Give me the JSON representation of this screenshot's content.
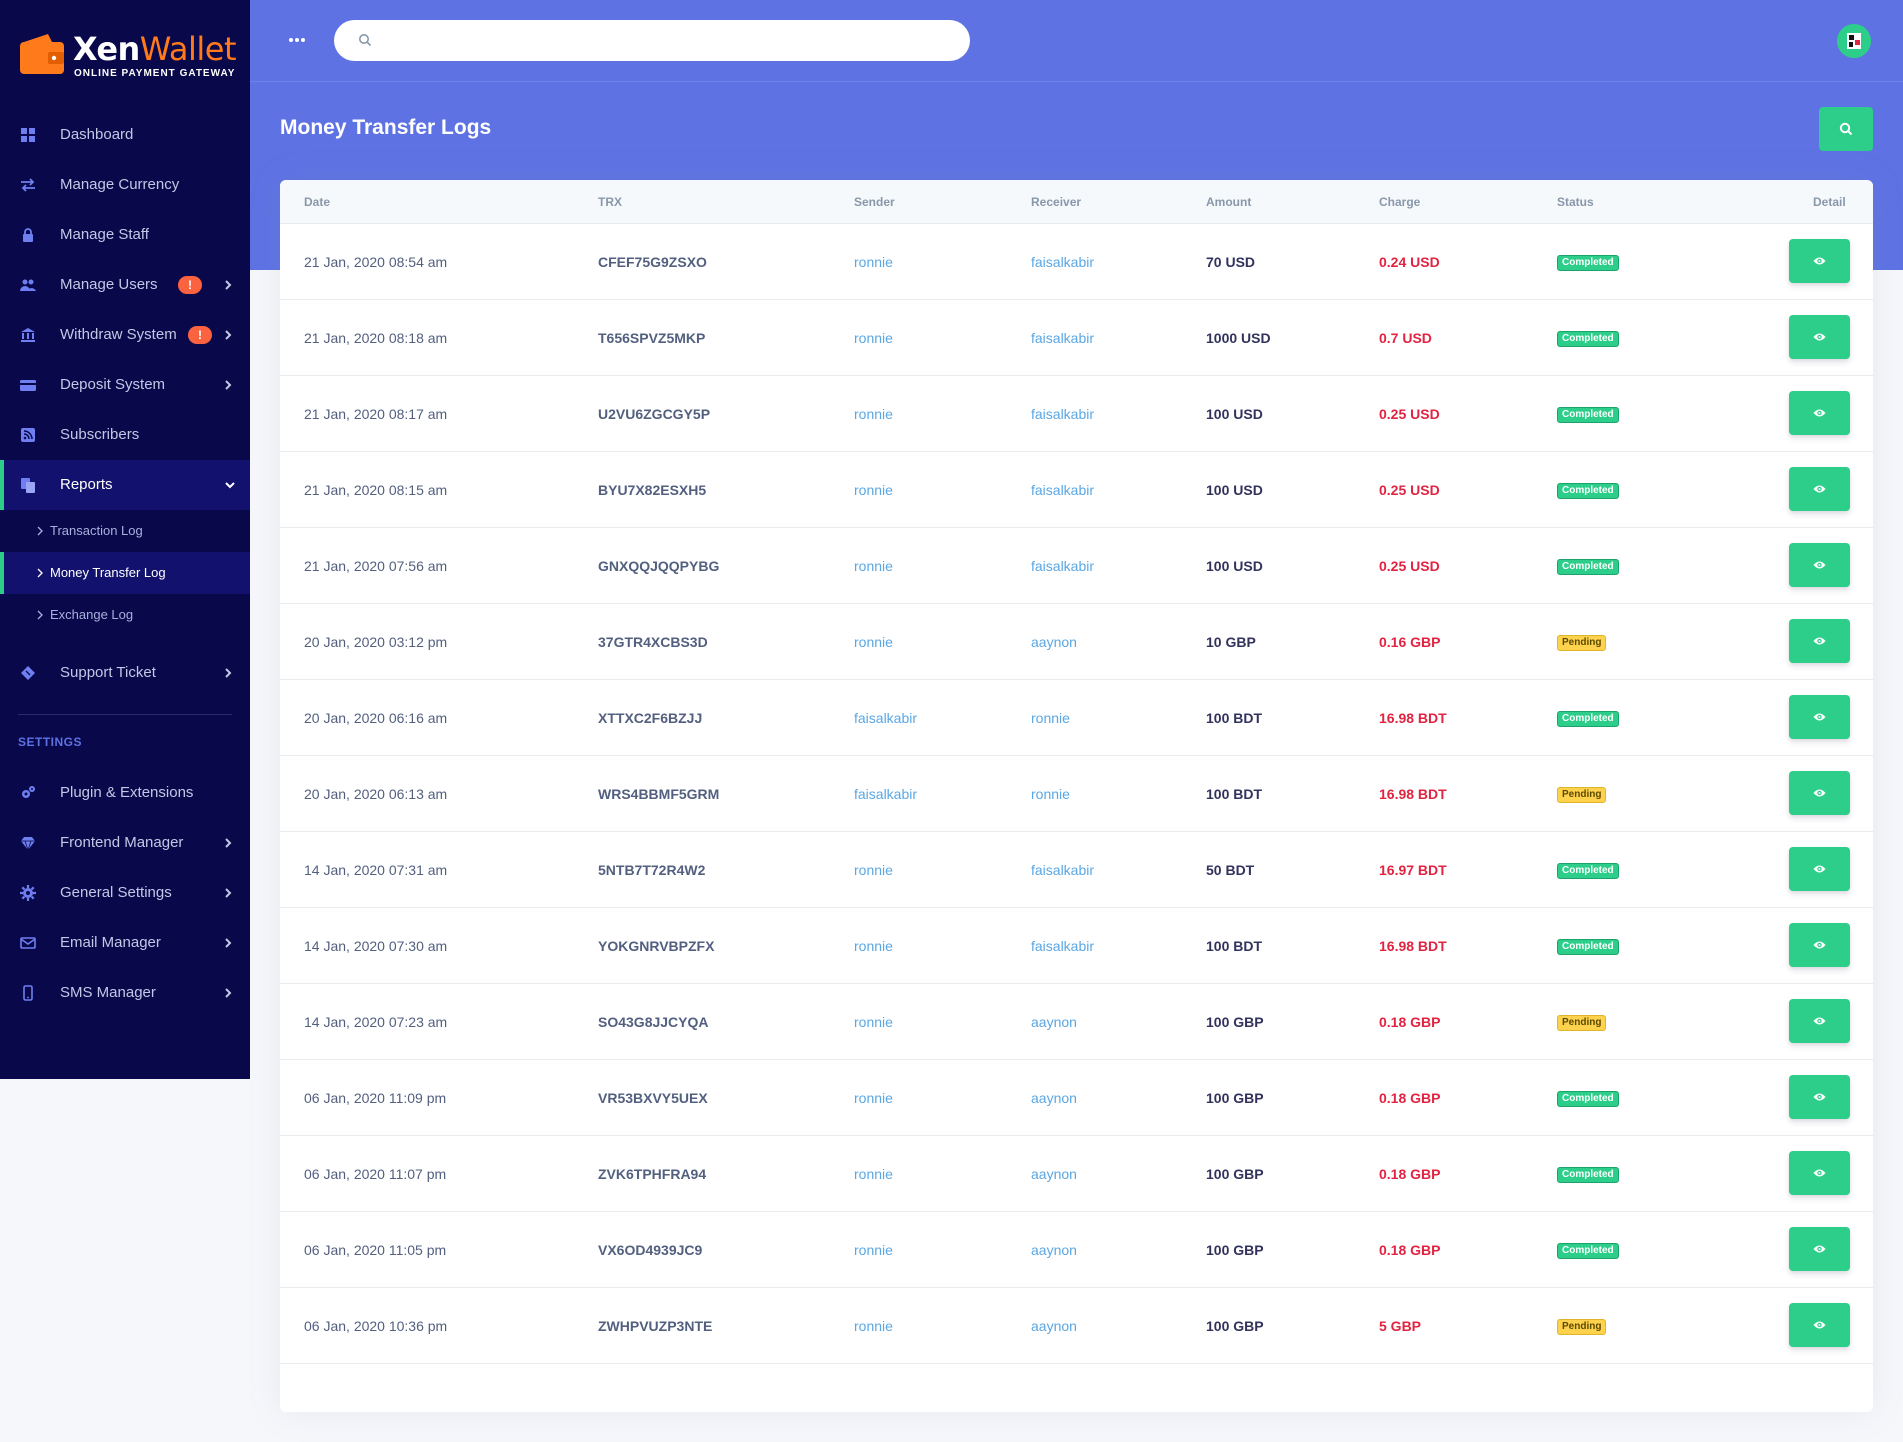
{
  "brand": {
    "name_bold": "Xen",
    "name_light": "Wallet",
    "tagline": "ONLINE PAYMENT GATEWAY"
  },
  "sidebar": {
    "items": [
      {
        "label": "Dashboard",
        "icon": "dashboard-icon"
      },
      {
        "label": "Manage Currency",
        "icon": "exchange-icon"
      },
      {
        "label": "Manage Staff",
        "icon": "lock-icon"
      },
      {
        "label": "Manage Users",
        "icon": "users-icon",
        "badge": "!"
      },
      {
        "label": "Withdraw System",
        "icon": "bank-icon",
        "badge": "!"
      },
      {
        "label": "Deposit System",
        "icon": "card-icon"
      },
      {
        "label": "Subscribers",
        "icon": "rss-icon"
      },
      {
        "label": "Reports",
        "icon": "reports-icon"
      }
    ],
    "subitems": [
      {
        "label": "Transaction Log"
      },
      {
        "label": "Money Transfer Log"
      },
      {
        "label": "Exchange Log"
      }
    ],
    "support": {
      "label": "Support Ticket"
    },
    "settings_heading": "SETTINGS",
    "settings_items": [
      {
        "label": "Plugin & Extensions",
        "icon": "cogs-icon"
      },
      {
        "label": "Frontend Manager",
        "icon": "gem-icon"
      },
      {
        "label": "General Settings",
        "icon": "gear-icon"
      },
      {
        "label": "Email Manager",
        "icon": "envelope-icon"
      },
      {
        "label": "SMS Manager",
        "icon": "mobile-icon"
      }
    ]
  },
  "header": {
    "search_placeholder": "",
    "page_title": "Money Transfer Logs"
  },
  "colors": {
    "primary": "#5e72e4",
    "success": "#2dce89",
    "danger": "#e02442",
    "warning": "#ffd24d",
    "sidebar": "#08084a"
  },
  "table": {
    "columns": [
      "Date",
      "TRX",
      "Sender",
      "Receiver",
      "Amount",
      "Charge",
      "Status",
      "Detail"
    ],
    "rows": [
      {
        "date": "21 Jan, 2020 08:54 am",
        "trx": "CFEF75G9ZSXO",
        "sender": "ronnie",
        "receiver": "faisalkabir",
        "amount": "70 USD",
        "charge": "0.24 USD",
        "status": "Completed"
      },
      {
        "date": "21 Jan, 2020 08:18 am",
        "trx": "T656SPVZ5MKP",
        "sender": "ronnie",
        "receiver": "faisalkabir",
        "amount": "1000 USD",
        "charge": "0.7 USD",
        "status": "Completed"
      },
      {
        "date": "21 Jan, 2020 08:17 am",
        "trx": "U2VU6ZGCGY5P",
        "sender": "ronnie",
        "receiver": "faisalkabir",
        "amount": "100 USD",
        "charge": "0.25 USD",
        "status": "Completed"
      },
      {
        "date": "21 Jan, 2020 08:15 am",
        "trx": "BYU7X82ESXH5",
        "sender": "ronnie",
        "receiver": "faisalkabir",
        "amount": "100 USD",
        "charge": "0.25 USD",
        "status": "Completed"
      },
      {
        "date": "21 Jan, 2020 07:56 am",
        "trx": "GNXQQJQQPYBG",
        "sender": "ronnie",
        "receiver": "faisalkabir",
        "amount": "100 USD",
        "charge": "0.25 USD",
        "status": "Completed"
      },
      {
        "date": "20 Jan, 2020 03:12 pm",
        "trx": "37GTR4XCBS3D",
        "sender": "ronnie",
        "receiver": "aaynon",
        "amount": "10 GBP",
        "charge": "0.16 GBP",
        "status": "Pending"
      },
      {
        "date": "20 Jan, 2020 06:16 am",
        "trx": "XTTXC2F6BZJJ",
        "sender": "faisalkabir",
        "receiver": "ronnie",
        "amount": "100 BDT",
        "charge": "16.98 BDT",
        "status": "Completed"
      },
      {
        "date": "20 Jan, 2020 06:13 am",
        "trx": "WRS4BBMF5GRM",
        "sender": "faisalkabir",
        "receiver": "ronnie",
        "amount": "100 BDT",
        "charge": "16.98 BDT",
        "status": "Pending"
      },
      {
        "date": "14 Jan, 2020 07:31 am",
        "trx": "5NTB7T72R4W2",
        "sender": "ronnie",
        "receiver": "faisalkabir",
        "amount": "50 BDT",
        "charge": "16.97 BDT",
        "status": "Completed"
      },
      {
        "date": "14 Jan, 2020 07:30 am",
        "trx": "YOKGNRVBPZFX",
        "sender": "ronnie",
        "receiver": "faisalkabir",
        "amount": "100 BDT",
        "charge": "16.98 BDT",
        "status": "Completed"
      },
      {
        "date": "14 Jan, 2020 07:23 am",
        "trx": "SO43G8JJCYQA",
        "sender": "ronnie",
        "receiver": "aaynon",
        "amount": "100 GBP",
        "charge": "0.18 GBP",
        "status": "Pending"
      },
      {
        "date": "06 Jan, 2020 11:09 pm",
        "trx": "VR53BXVY5UEX",
        "sender": "ronnie",
        "receiver": "aaynon",
        "amount": "100 GBP",
        "charge": "0.18 GBP",
        "status": "Completed"
      },
      {
        "date": "06 Jan, 2020 11:07 pm",
        "trx": "ZVK6TPHFRA94",
        "sender": "ronnie",
        "receiver": "aaynon",
        "amount": "100 GBP",
        "charge": "0.18 GBP",
        "status": "Completed"
      },
      {
        "date": "06 Jan, 2020 11:05 pm",
        "trx": "VX6OD4939JC9",
        "sender": "ronnie",
        "receiver": "aaynon",
        "amount": "100 GBP",
        "charge": "0.18 GBP",
        "status": "Completed"
      },
      {
        "date": "06 Jan, 2020 10:36 pm",
        "trx": "ZWHPVUZP3NTE",
        "sender": "ronnie",
        "receiver": "aaynon",
        "amount": "100 GBP",
        "charge": "5 GBP",
        "status": "Pending"
      }
    ]
  }
}
